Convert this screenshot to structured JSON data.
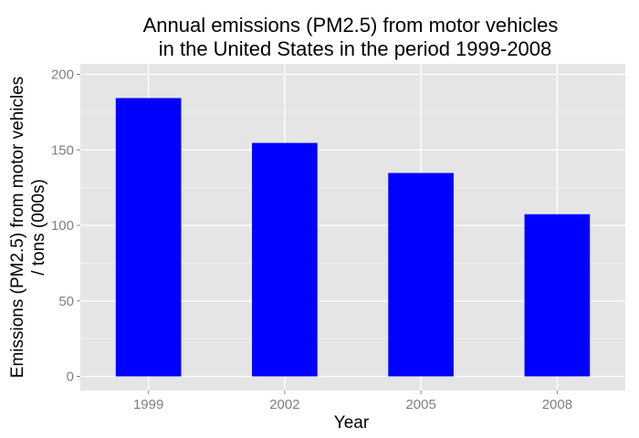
{
  "chart_data": {
    "type": "bar",
    "title_lines": [
      "Annual emissions (PM2.5) from motor vehicles",
      "in the United States in the period 1999-2008"
    ],
    "xlabel": "Year",
    "ylabel_lines": [
      "Emissions (PM2.5) from motor vehicles",
      "/ tons (000s)"
    ],
    "categories": [
      "1999",
      "2002",
      "2005",
      "2008"
    ],
    "values": [
      184.3,
      154.6,
      134.7,
      107.4
    ],
    "ylim": [
      0,
      210
    ],
    "yticks": [
      0,
      50,
      100,
      150,
      200
    ],
    "grid": true,
    "bar_color": "#0000ff",
    "panel_color": "#e5e5e5",
    "grid_color": "#ffffff"
  }
}
